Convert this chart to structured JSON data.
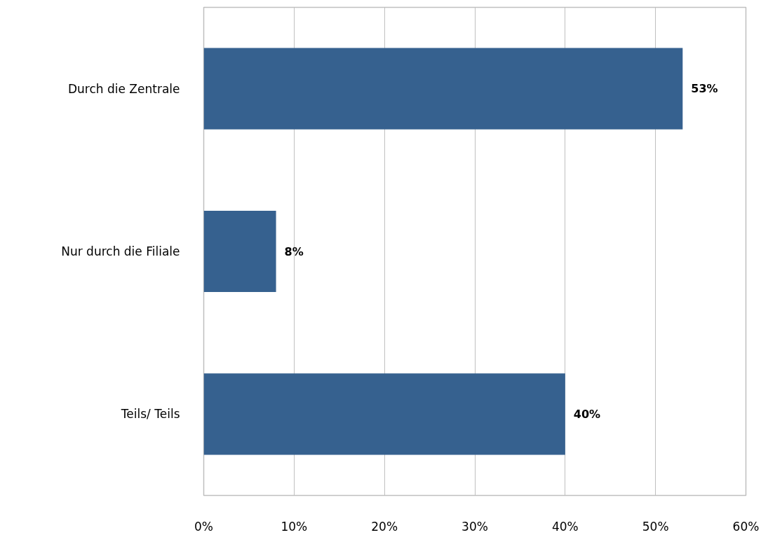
{
  "chart_data": {
    "type": "bar",
    "orientation": "horizontal",
    "categories": [
      "Durch die Zentrale",
      "Nur durch die Filiale",
      "Teils/ Teils"
    ],
    "values": [
      53,
      8,
      40
    ],
    "value_labels": [
      "53%",
      "8%",
      "40%"
    ],
    "color": "#36618f",
    "xlim": [
      0,
      60
    ],
    "xticks": [
      {
        "value": 0,
        "label": "0%"
      },
      {
        "value": 10,
        "label": "10%"
      },
      {
        "value": 20,
        "label": "20%"
      },
      {
        "value": 30,
        "label": "30%"
      },
      {
        "value": 40,
        "label": "40%"
      },
      {
        "value": 50,
        "label": "50%"
      },
      {
        "value": 60,
        "label": "60%"
      }
    ],
    "grid": "x"
  }
}
